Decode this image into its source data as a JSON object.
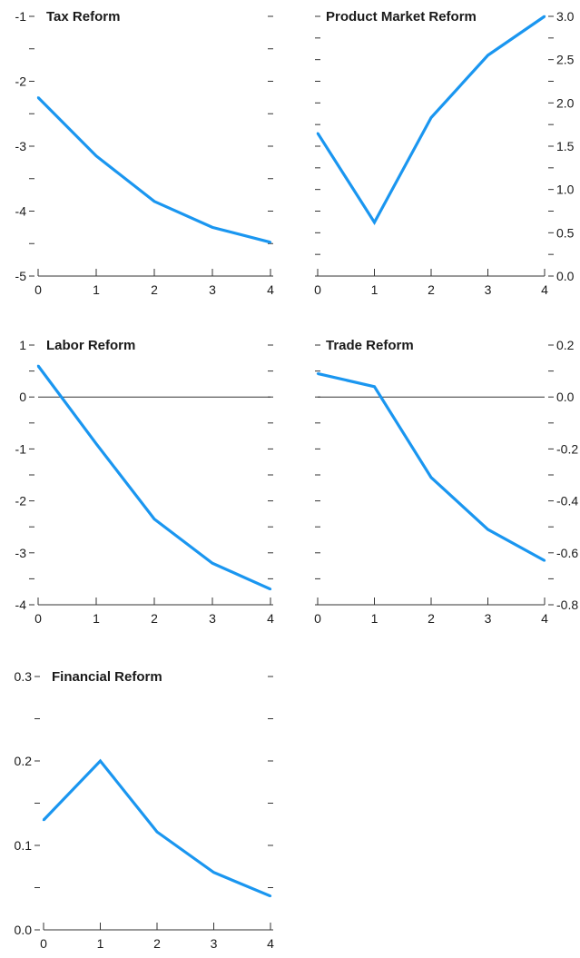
{
  "colors": {
    "series": "#1a96f0",
    "axis": "#333333",
    "text": "#1a1a1a"
  },
  "chart_data": [
    {
      "type": "line",
      "title": "Tax Reform",
      "x": [
        0,
        1,
        2,
        3,
        4
      ],
      "xticks": [
        "0",
        "1",
        "2",
        "3",
        "4"
      ],
      "values": [
        -2.25,
        -3.15,
        -3.85,
        -4.25,
        -4.48
      ],
      "ylim": [
        -5,
        -1
      ],
      "yticks": [
        "-1",
        "-2",
        "-3",
        "-4",
        "-5"
      ],
      "yaxis_side": "left",
      "zero_line": false
    },
    {
      "type": "line",
      "title": "Product Market Reform",
      "x": [
        0,
        1,
        2,
        3,
        4
      ],
      "xticks": [
        "0",
        "1",
        "2",
        "3",
        "4"
      ],
      "values": [
        1.65,
        0.62,
        1.83,
        2.55,
        3.0
      ],
      "ylim": [
        0,
        3
      ],
      "yticks": [
        "0.0",
        "0.5",
        "1.0",
        "1.5",
        "2.0",
        "2.5",
        "3.0"
      ],
      "yaxis_side": "right",
      "zero_line": false
    },
    {
      "type": "line",
      "title": "Labor Reform",
      "x": [
        0,
        1,
        2,
        3,
        4
      ],
      "xticks": [
        "0",
        "1",
        "2",
        "3",
        "4"
      ],
      "values": [
        0.6,
        -0.9,
        -2.35,
        -3.2,
        -3.7
      ],
      "ylim": [
        -4,
        1
      ],
      "yticks": [
        "1",
        "0",
        "-1",
        "-2",
        "-3",
        "-4"
      ],
      "yaxis_side": "left",
      "zero_line": true
    },
    {
      "type": "line",
      "title": "Trade Reform",
      "x": [
        0,
        1,
        2,
        3,
        4
      ],
      "xticks": [
        "0",
        "1",
        "2",
        "3",
        "4"
      ],
      "values": [
        0.09,
        0.04,
        -0.31,
        -0.51,
        -0.63
      ],
      "ylim": [
        -0.8,
        0.2
      ],
      "yticks": [
        "0.2",
        "0.0",
        "-0.2",
        "-0.4",
        "-0.6",
        "-0.8"
      ],
      "yaxis_side": "right",
      "zero_line": true
    },
    {
      "type": "line",
      "title": "Financial Reform",
      "x": [
        0,
        1,
        2,
        3,
        4
      ],
      "xticks": [
        "0",
        "1",
        "2",
        "3",
        "4"
      ],
      "values": [
        0.13,
        0.2,
        0.116,
        0.068,
        0.04
      ],
      "ylim": [
        0,
        0.3
      ],
      "yticks": [
        "0.3",
        "0.2",
        "0.1",
        "0.0"
      ],
      "yaxis_side": "left",
      "zero_line": false
    }
  ]
}
